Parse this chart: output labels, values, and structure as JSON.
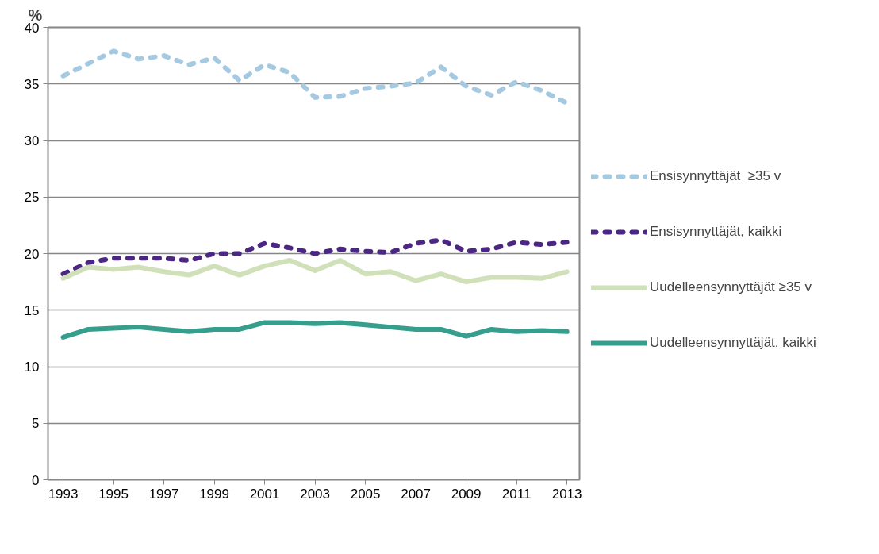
{
  "chart_data": {
    "type": "line",
    "ylabel": "%",
    "x": [
      1993,
      1994,
      1995,
      1996,
      1997,
      1998,
      1999,
      2000,
      2001,
      2002,
      2003,
      2004,
      2005,
      2006,
      2007,
      2008,
      2009,
      2010,
      2011,
      2012,
      2013
    ],
    "series": [
      {
        "name": "Ensisynnyttäjät  ≥35 v",
        "color": "#a5c9e1",
        "line_style": "dashed",
        "values": [
          35.7,
          36.8,
          37.9,
          37.2,
          37.5,
          36.7,
          37.3,
          35.3,
          36.7,
          36.0,
          33.8,
          33.9,
          34.6,
          34.8,
          35.1,
          36.5,
          34.8,
          34.0,
          35.2,
          34.4,
          33.3
        ]
      },
      {
        "name": "Ensisynnyttäjät, kaikki",
        "color": "#4b2683",
        "line_style": "dashed",
        "values": [
          18.2,
          19.2,
          19.6,
          19.6,
          19.6,
          19.4,
          20.0,
          20.0,
          20.9,
          20.5,
          20.0,
          20.4,
          20.2,
          20.1,
          20.9,
          21.2,
          20.2,
          20.4,
          21.0,
          20.8,
          21.0
        ]
      },
      {
        "name": "Uudelleensynnyttäjät ≥35 v",
        "color": "#d0e0b8",
        "line_style": "solid",
        "values": [
          17.8,
          18.8,
          18.6,
          18.8,
          18.4,
          18.1,
          18.9,
          18.1,
          18.9,
          19.4,
          18.5,
          19.4,
          18.2,
          18.4,
          17.6,
          18.2,
          17.5,
          17.9,
          17.9,
          17.8,
          18.4
        ]
      },
      {
        "name": "Uudelleensynnyttäjät, kaikki",
        "color": "#369e8c",
        "line_style": "solid",
        "values": [
          12.6,
          13.3,
          13.4,
          13.5,
          13.3,
          13.1,
          13.3,
          13.3,
          13.9,
          13.9,
          13.8,
          13.9,
          13.7,
          13.5,
          13.3,
          13.3,
          12.7,
          13.3,
          13.1,
          13.2,
          13.1
        ]
      }
    ],
    "xlim": [
      1992.4,
      2013.5
    ],
    "xticks": [
      1993,
      1995,
      1997,
      1999,
      2001,
      2003,
      2005,
      2007,
      2009,
      2011,
      2013
    ],
    "ylim": [
      0,
      40
    ],
    "yticks": [
      0,
      5,
      10,
      15,
      20,
      25,
      30,
      35,
      40
    ],
    "grid": "y",
    "legend": "right",
    "marker": "none"
  }
}
